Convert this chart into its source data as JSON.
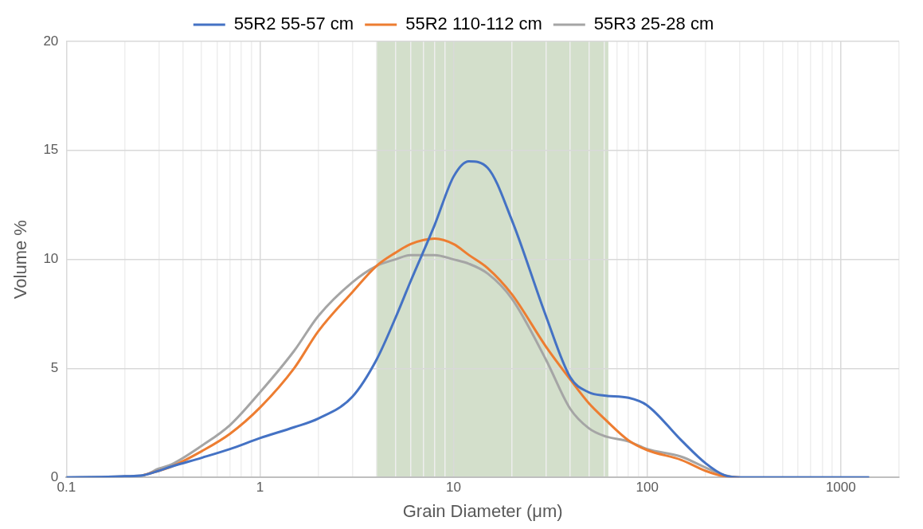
{
  "chart_data": {
    "type": "line",
    "xlabel": "Grain Diameter (μm)",
    "ylabel": "Volume %",
    "log": "x",
    "grid": true,
    "legend": "top",
    "marker": "none",
    "line_style": "solid",
    "x": [
      0.1,
      0.15,
      0.2,
      0.25,
      0.3,
      0.35,
      0.5,
      0.7,
      1,
      1.5,
      2,
      3,
      4,
      5,
      6,
      8,
      10,
      12,
      15,
      20,
      30,
      40,
      50,
      60,
      80,
      100,
      150,
      200,
      250,
      300,
      500,
      1000,
      1400
    ],
    "series": [
      {
        "name": "55R2 55-57 cm",
        "color": "#4472c4",
        "values": [
          0,
          0.02,
          0.05,
          0.1,
          0.3,
          0.5,
          0.9,
          1.3,
          1.8,
          2.3,
          2.7,
          3.7,
          5.4,
          7.3,
          9.0,
          11.6,
          13.8,
          14.5,
          14.2,
          11.8,
          7.4,
          4.6,
          3.9,
          3.75,
          3.65,
          3.3,
          1.7,
          0.65,
          0.1,
          0,
          0,
          0,
          0
        ]
      },
      {
        "name": "55R2 110-112 cm",
        "color": "#ed7d31",
        "values": [
          null,
          null,
          null,
          0.1,
          0.3,
          0.5,
          1.2,
          2.0,
          3.2,
          5.0,
          6.7,
          8.5,
          9.7,
          10.3,
          10.7,
          10.95,
          10.7,
          10.2,
          9.6,
          8.4,
          6.0,
          4.5,
          3.4,
          2.7,
          1.7,
          1.25,
          0.8,
          0.3,
          0.05,
          0,
          null,
          null,
          null
        ]
      },
      {
        "name": "55R3 25-28 cm",
        "color": "#a5a5a5",
        "values": [
          0,
          0.02,
          0.05,
          0.1,
          0.4,
          0.6,
          1.45,
          2.4,
          3.9,
          5.8,
          7.4,
          8.95,
          9.7,
          10.0,
          10.2,
          10.2,
          10.0,
          9.8,
          9.35,
          8.2,
          5.4,
          3.15,
          2.25,
          1.9,
          1.65,
          1.3,
          0.95,
          0.45,
          0.1,
          0,
          0,
          0,
          0
        ]
      }
    ],
    "xlim": [
      0.1,
      2000
    ],
    "xticks": [
      0.1,
      {
        "value": 0.2,
        "label": null
      },
      {
        "value": 0.3,
        "label": null
      },
      {
        "value": 0.4,
        "label": null
      },
      {
        "value": 0.5,
        "label": null
      },
      {
        "value": 0.6,
        "label": null
      },
      {
        "value": 0.7,
        "label": null
      },
      {
        "value": 0.8,
        "label": null
      },
      {
        "value": 0.9,
        "label": null
      },
      1,
      {
        "value": 2,
        "label": null
      },
      {
        "value": 3,
        "label": null
      },
      {
        "value": 4,
        "label": null
      },
      {
        "value": 5,
        "label": null
      },
      {
        "value": 6,
        "label": null
      },
      {
        "value": 7,
        "label": null
      },
      {
        "value": 8,
        "label": null
      },
      {
        "value": 9,
        "label": null
      },
      10,
      {
        "value": 20,
        "label": null
      },
      {
        "value": 30,
        "label": null
      },
      {
        "value": 40,
        "label": null
      },
      {
        "value": 50,
        "label": null
      },
      {
        "value": 60,
        "label": null
      },
      {
        "value": 70,
        "label": null
      },
      {
        "value": 80,
        "label": null
      },
      {
        "value": 90,
        "label": null
      },
      100,
      {
        "value": 200,
        "label": null
      },
      {
        "value": 300,
        "label": null
      },
      {
        "value": 400,
        "label": null
      },
      {
        "value": 500,
        "label": null
      },
      {
        "value": 600,
        "label": null
      },
      {
        "value": 700,
        "label": null
      },
      {
        "value": 800,
        "label": null
      },
      {
        "value": 900,
        "label": null
      },
      1000,
      {
        "value": 2000,
        "label": null
      }
    ],
    "ylim": [
      0,
      20
    ],
    "yticks": [
      0,
      5,
      10,
      15,
      20
    ],
    "bands": [
      {
        "axis": "x",
        "from": 4,
        "to": 63,
        "color": "#d3dfcb"
      }
    ]
  }
}
